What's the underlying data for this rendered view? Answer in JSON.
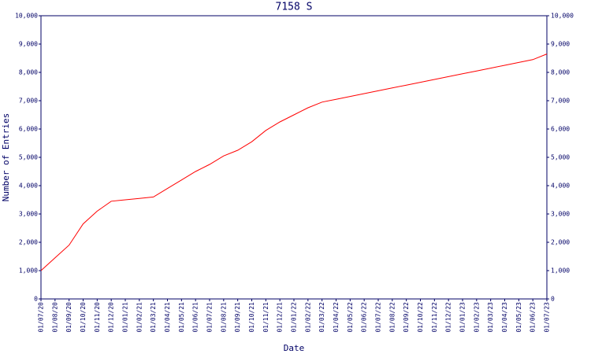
{
  "chart_data": {
    "type": "line",
    "title": "7158 S",
    "x_label": "Date",
    "y_label": "Number of Entries",
    "categories": [
      "01/07/20",
      "01/08/20",
      "01/09/20",
      "01/10/20",
      "01/11/20",
      "01/12/20",
      "01/01/21",
      "01/02/21",
      "01/03/21",
      "01/04/21",
      "01/05/21",
      "01/06/21",
      "01/07/21",
      "01/08/21",
      "01/09/21",
      "01/10/21",
      "01/11/21",
      "01/12/21",
      "01/01/22",
      "01/02/22",
      "01/03/22",
      "01/04/22",
      "01/05/22",
      "01/06/22",
      "01/07/22",
      "01/08/22",
      "01/09/22",
      "01/10/22",
      "01/11/22",
      "01/12/22",
      "01/01/23",
      "01/02/23",
      "01/03/23",
      "01/04/23",
      "01/05/23",
      "01/06/23",
      "01/07/23"
    ],
    "values": [
      1000,
      1450,
      1900,
      2650,
      3100,
      3450,
      3500,
      3550,
      3600,
      3900,
      4200,
      4500,
      4750,
      5050,
      5250,
      5550,
      5950,
      6250,
      6500,
      6750,
      6950,
      7050,
      7150,
      7250,
      7350,
      7450,
      7550,
      7650,
      7750,
      7850,
      7950,
      8050,
      8150,
      8250,
      8350,
      8450,
      8650
    ],
    "color": "#ff0000",
    "ylim": [
      0,
      10000
    ],
    "yticks": [
      0,
      {
        "value": 1000,
        "label": "1,000"
      },
      {
        "value": 2000,
        "label": "2,000"
      },
      {
        "value": 3000,
        "label": "3,000"
      },
      {
        "value": 4000,
        "label": "4,000"
      },
      {
        "value": 5000,
        "label": "5,000"
      },
      {
        "value": 6000,
        "label": "6,000"
      },
      {
        "value": 7000,
        "label": "7,000"
      },
      {
        "value": 8000,
        "label": "8,000"
      },
      {
        "value": 9000,
        "label": "9,000"
      },
      {
        "value": 10000,
        "label": "10,000"
      }
    ],
    "y2lim": [
      0,
      10000
    ],
    "y2ticks": [
      0,
      {
        "value": 1000,
        "label": "1,000"
      },
      {
        "value": 2000,
        "label": "2,000"
      },
      {
        "value": 3000,
        "label": "3,000"
      },
      {
        "value": 4000,
        "label": "4,000"
      },
      {
        "value": 5000,
        "label": "5,000"
      },
      {
        "value": 6000,
        "label": "6,000"
      },
      {
        "value": 7000,
        "label": "7,000"
      },
      {
        "value": 8000,
        "label": "8,000"
      },
      {
        "value": 9000,
        "label": "9,000"
      },
      {
        "value": 10000,
        "label": "10,000"
      }
    ],
    "grid": false
  }
}
